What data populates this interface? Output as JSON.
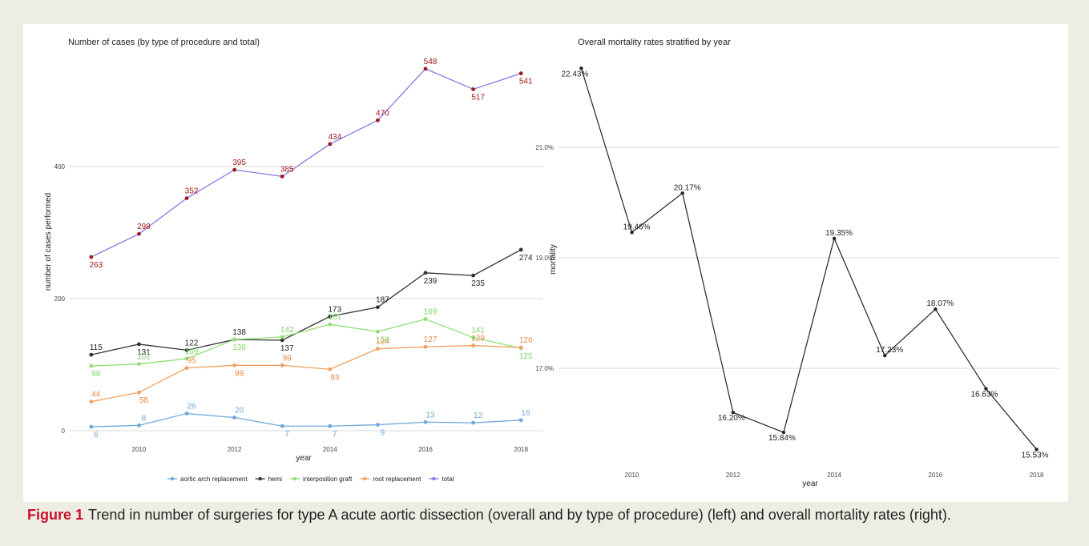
{
  "caption": {
    "label": "Figure 1",
    "text": "Trend in number of surgeries for type A acute aortic dissection (overall and by type of procedure) (left) and overall mortality rates (right)."
  },
  "colors": {
    "background": "#eeede3",
    "panel": "#ffffff",
    "caption_label": "#c8102e"
  },
  "chart_data": [
    {
      "type": "line",
      "title": "Number of cases (by type of procedure and total)",
      "xlabel": "year",
      "ylabel": "number of cases performed",
      "x": [
        2009,
        2010,
        2011,
        2012,
        2013,
        2014,
        2015,
        2016,
        2017,
        2018
      ],
      "xticks": [
        2010,
        2012,
        2014,
        2016,
        2018
      ],
      "yticks": [
        0,
        200,
        400
      ],
      "ylim": [
        -10,
        590
      ],
      "grid": "horizontal",
      "legend_position": "bottom",
      "series": [
        {
          "name": "aortic arch replacement",
          "color": "#6fa8dc",
          "label_color": "#6fa8dc",
          "values": [
            6,
            8,
            26,
            20,
            7,
            7,
            9,
            13,
            12,
            16
          ]
        },
        {
          "name": "hemi",
          "color": "#333333",
          "label_color": "#222222",
          "values": [
            115,
            131,
            122,
            138,
            137,
            173,
            187,
            239,
            235,
            274
          ]
        },
        {
          "name": "interposition graft",
          "color": "#8fe070",
          "label_color": "#7cd86a",
          "values": [
            98,
            101,
            109,
            138,
            142,
            161,
            150,
            169,
            141,
            125
          ]
        },
        {
          "name": "root replacement",
          "color": "#f0a060",
          "label_color": "#e8884a",
          "values": [
            44,
            58,
            95,
            99,
            99,
            93,
            124,
            127,
            129,
            126
          ]
        },
        {
          "name": "total",
          "color": "#8878e8",
          "label_color": "#a01818",
          "point_color": "#9b1c1c",
          "values": [
            263,
            298,
            352,
            395,
            385,
            434,
            470,
            548,
            517,
            541
          ]
        }
      ],
      "label_positions": {
        "aortic arch replacement": [
          "below",
          "above",
          "above",
          "above",
          "below",
          "below",
          "below",
          "above",
          "above",
          "above"
        ],
        "hemi": [
          "above",
          "below",
          "above",
          "above",
          "below",
          "above",
          "above",
          "below",
          "below",
          "below"
        ],
        "interposition graft": [
          "below",
          "above",
          "above",
          "below",
          "above",
          "above",
          "below",
          "above",
          "above",
          "below"
        ],
        "root replacement": [
          "above",
          "below",
          "above",
          "below",
          "above",
          "below",
          "above",
          "above",
          "above",
          "above"
        ],
        "total": [
          "below",
          "above",
          "above",
          "above",
          "above",
          "above",
          "above",
          "above",
          "below",
          "below"
        ]
      }
    },
    {
      "type": "line",
      "title": "Overall mortality rates stratified by year",
      "xlabel": "year",
      "ylabel": "mortality",
      "x": [
        2009,
        2010,
        2011,
        2012,
        2013,
        2014,
        2015,
        2016,
        2017,
        2018
      ],
      "values": [
        22.43,
        19.46,
        20.17,
        16.2,
        15.84,
        19.35,
        17.23,
        18.07,
        16.63,
        15.53
      ],
      "value_labels": [
        "22.43%",
        "19.46%",
        "20.17%",
        "16.20%",
        "15.84%",
        "19.35%",
        "17.23%",
        "18.07%",
        "16.63%",
        "15.53%"
      ],
      "xticks": [
        2010,
        2012,
        2014,
        2016,
        2018
      ],
      "yticks": [
        17.0,
        19.0,
        21.0
      ],
      "ytick_labels": [
        "17.0%",
        "19.0%",
        "21.0%"
      ],
      "ylim": [
        15.4,
        22.5
      ],
      "grid": "horizontal",
      "line_color": "#222222"
    }
  ]
}
